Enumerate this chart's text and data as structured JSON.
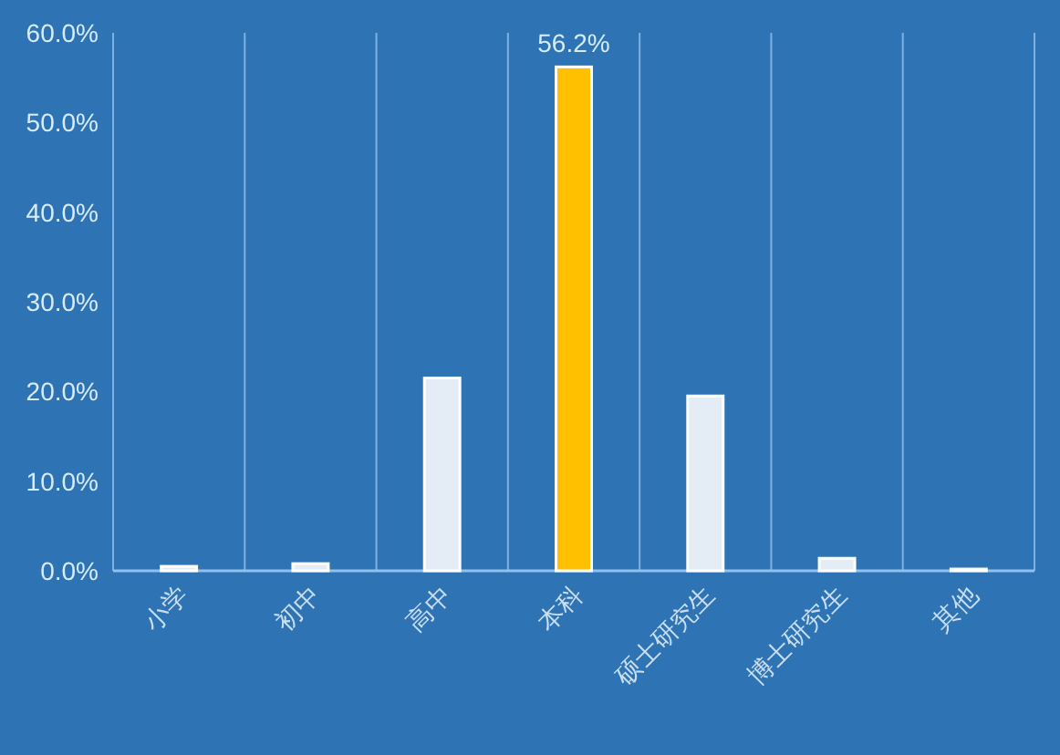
{
  "chart_data": {
    "type": "bar",
    "categories": [
      "小学",
      "初中",
      "高中",
      "本科",
      "硕士研究生",
      "博士研究生",
      "其他"
    ],
    "values": [
      0.5,
      0.8,
      21.5,
      56.2,
      19.5,
      1.4,
      0.2
    ],
    "colors": [
      "#e4edf5",
      "#e4edf5",
      "#e4edf5",
      "#ffc000",
      "#e4edf5",
      "#e4edf5",
      "#e4edf5"
    ],
    "value_labels": [
      null,
      null,
      null,
      "56.2%",
      null,
      null,
      null
    ],
    "ylim": [
      0,
      60
    ],
    "yticks": [
      {
        "value": 0,
        "label": "0.0%"
      },
      {
        "value": 10,
        "label": "10.0%"
      },
      {
        "value": 20,
        "label": "20.0%"
      },
      {
        "value": 30,
        "label": "30.0%"
      },
      {
        "value": 40,
        "label": "40.0%"
      },
      {
        "value": 50,
        "label": "50.0%"
      },
      {
        "value": 60,
        "label": "60.0%"
      }
    ],
    "grid": "x"
  }
}
